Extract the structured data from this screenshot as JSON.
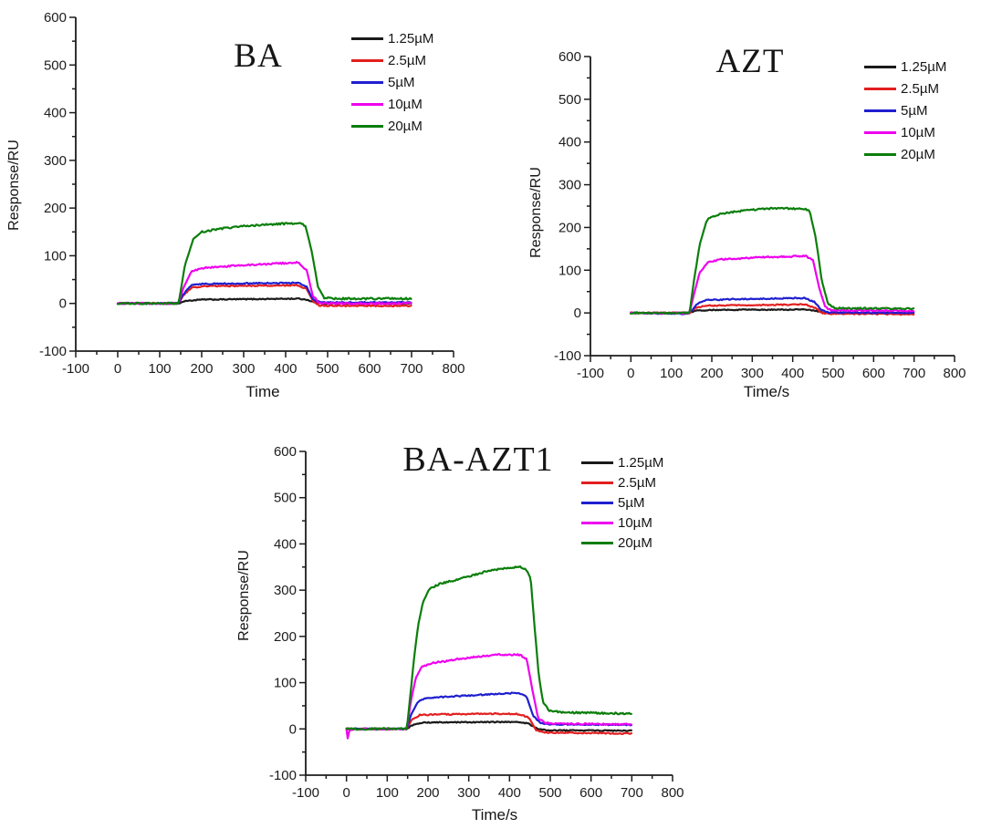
{
  "figure": {
    "background": "#ffffff",
    "text_color": "#151515",
    "axis_color": "#1c1c1c"
  },
  "chart_data": [
    {
      "id": "ba",
      "type": "line",
      "title": "BA",
      "xlabel": "Time",
      "ylabel": "Response/RU",
      "xlim": [
        -100,
        800
      ],
      "ylim": [
        -100,
        600
      ],
      "xticks": [
        -100,
        0,
        100,
        200,
        300,
        400,
        500,
        600,
        700,
        800
      ],
      "yticks": [
        -100,
        0,
        100,
        200,
        300,
        400,
        500,
        600
      ],
      "minor_tick_step": 50,
      "grid": "off",
      "legend_position": "top-right",
      "series": [
        {
          "label": "1.25µM",
          "color": "#1a1a1a",
          "points": [
            [
              0,
              0
            ],
            [
              145,
              0
            ],
            [
              160,
              5
            ],
            [
              200,
              8
            ],
            [
              430,
              10
            ],
            [
              450,
              8
            ],
            [
              470,
              2
            ],
            [
              490,
              0
            ],
            [
              700,
              0
            ]
          ]
        },
        {
          "label": "2.5µM",
          "color": "#e31f1f",
          "points": [
            [
              0,
              0
            ],
            [
              145,
              0
            ],
            [
              155,
              15
            ],
            [
              175,
              33
            ],
            [
              200,
              36
            ],
            [
              430,
              38
            ],
            [
              450,
              30
            ],
            [
              465,
              5
            ],
            [
              480,
              -4
            ],
            [
              500,
              -5
            ],
            [
              700,
              -5
            ]
          ]
        },
        {
          "label": "5µM",
          "color": "#1f1fd0",
          "points": [
            [
              0,
              0
            ],
            [
              145,
              0
            ],
            [
              155,
              18
            ],
            [
              175,
              38
            ],
            [
              200,
              41
            ],
            [
              430,
              43
            ],
            [
              450,
              35
            ],
            [
              465,
              8
            ],
            [
              480,
              3
            ],
            [
              500,
              2
            ],
            [
              700,
              2
            ]
          ]
        },
        {
          "label": "10µM",
          "color": "#ee00ee",
          "points": [
            [
              0,
              0
            ],
            [
              145,
              0
            ],
            [
              155,
              30
            ],
            [
              175,
              66
            ],
            [
              200,
              74
            ],
            [
              260,
              78
            ],
            [
              430,
              86
            ],
            [
              450,
              70
            ],
            [
              465,
              15
            ],
            [
              480,
              2
            ],
            [
              500,
              0
            ],
            [
              700,
              0
            ]
          ]
        },
        {
          "label": "20µM",
          "color": "#0b7e0b",
          "points": [
            [
              0,
              0
            ],
            [
              145,
              0
            ],
            [
              160,
              80
            ],
            [
              180,
              135
            ],
            [
              200,
              150
            ],
            [
              240,
              156
            ],
            [
              310,
              163
            ],
            [
              390,
              167
            ],
            [
              432,
              168
            ],
            [
              447,
              163
            ],
            [
              462,
              110
            ],
            [
              477,
              35
            ],
            [
              492,
              12
            ],
            [
              515,
              10
            ],
            [
              700,
              10
            ]
          ]
        }
      ]
    },
    {
      "id": "azt",
      "type": "line",
      "title": "AZT",
      "xlabel": "Time/s",
      "ylabel": "Response/RU",
      "xlim": [
        -100,
        800
      ],
      "ylim": [
        -100,
        600
      ],
      "xticks": [
        -100,
        0,
        100,
        200,
        300,
        400,
        500,
        600,
        700,
        800
      ],
      "yticks": [
        -100,
        0,
        100,
        200,
        300,
        400,
        500,
        600
      ],
      "minor_tick_step": 50,
      "grid": "off",
      "legend_position": "top-right",
      "series": [
        {
          "label": "1.25µM",
          "color": "#1a1a1a",
          "points": [
            [
              0,
              0
            ],
            [
              145,
              0
            ],
            [
              160,
              5
            ],
            [
              200,
              7
            ],
            [
              430,
              8
            ],
            [
              455,
              5
            ],
            [
              475,
              1
            ],
            [
              500,
              0
            ],
            [
              700,
              0
            ]
          ]
        },
        {
          "label": "2.5µM",
          "color": "#e31f1f",
          "points": [
            [
              0,
              0
            ],
            [
              145,
              0
            ],
            [
              160,
              12
            ],
            [
              185,
              17
            ],
            [
              430,
              20
            ],
            [
              455,
              12
            ],
            [
              472,
              0
            ],
            [
              490,
              -2
            ],
            [
              700,
              -3
            ]
          ]
        },
        {
          "label": "5µM",
          "color": "#1f1fd0",
          "points": [
            [
              0,
              0
            ],
            [
              138,
              -2
            ],
            [
              150,
              5
            ],
            [
              165,
              22
            ],
            [
              185,
              30
            ],
            [
              250,
              32
            ],
            [
              430,
              35
            ],
            [
              455,
              25
            ],
            [
              470,
              8
            ],
            [
              490,
              1
            ],
            [
              700,
              0
            ]
          ]
        },
        {
          "label": "10µM",
          "color": "#ee00ee",
          "points": [
            [
              0,
              0
            ],
            [
              145,
              0
            ],
            [
              155,
              40
            ],
            [
              170,
              95
            ],
            [
              190,
              118
            ],
            [
              220,
              125
            ],
            [
              310,
              130
            ],
            [
              432,
              133
            ],
            [
              450,
              124
            ],
            [
              465,
              60
            ],
            [
              480,
              15
            ],
            [
              495,
              6
            ],
            [
              700,
              5
            ]
          ]
        },
        {
          "label": "20µM",
          "color": "#0b7e0b",
          "points": [
            [
              0,
              0
            ],
            [
              145,
              0
            ],
            [
              155,
              70
            ],
            [
              170,
              160
            ],
            [
              188,
              218
            ],
            [
              220,
              232
            ],
            [
              285,
              240
            ],
            [
              355,
              245
            ],
            [
              430,
              243
            ],
            [
              442,
              238
            ],
            [
              457,
              175
            ],
            [
              472,
              75
            ],
            [
              487,
              22
            ],
            [
              505,
              11
            ],
            [
              700,
              10
            ]
          ]
        }
      ]
    },
    {
      "id": "ba-azt1",
      "type": "line",
      "title": "BA-AZT1",
      "xlabel": "Time/s",
      "ylabel": "Response/RU",
      "xlim": [
        -100,
        800
      ],
      "ylim": [
        -100,
        600
      ],
      "xticks": [
        -100,
        0,
        100,
        200,
        300,
        400,
        500,
        600,
        700,
        800
      ],
      "yticks": [
        -100,
        0,
        100,
        200,
        300,
        400,
        500,
        600
      ],
      "minor_tick_step": 50,
      "grid": "off",
      "legend_position": "top-right",
      "series": [
        {
          "label": "1.25µM",
          "color": "#1a1a1a",
          "points": [
            [
              0,
              0
            ],
            [
              148,
              0
            ],
            [
              165,
              10
            ],
            [
              190,
              14
            ],
            [
              420,
              15
            ],
            [
              445,
              12
            ],
            [
              470,
              0
            ],
            [
              490,
              -3
            ],
            [
              700,
              -4
            ]
          ]
        },
        {
          "label": "2.5µM",
          "color": "#e31f1f",
          "points": [
            [
              0,
              0
            ],
            [
              148,
              0
            ],
            [
              160,
              20
            ],
            [
              180,
              30
            ],
            [
              210,
              31
            ],
            [
              350,
              33
            ],
            [
              425,
              32
            ],
            [
              448,
              24
            ],
            [
              465,
              -2
            ],
            [
              485,
              -8
            ],
            [
              700,
              -10
            ]
          ]
        },
        {
          "label": "5µM",
          "color": "#1f1fd0",
          "points": [
            [
              0,
              0
            ],
            [
              148,
              0
            ],
            [
              158,
              30
            ],
            [
              175,
              58
            ],
            [
              195,
              67
            ],
            [
              255,
              70
            ],
            [
              355,
              75
            ],
            [
              422,
              78
            ],
            [
              442,
              70
            ],
            [
              458,
              28
            ],
            [
              478,
              12
            ],
            [
              500,
              10
            ],
            [
              700,
              9
            ]
          ]
        },
        {
          "label": "10µM",
          "color": "#ee00ee",
          "points": [
            [
              0,
              -1
            ],
            [
              3,
              -20
            ],
            [
              8,
              -1
            ],
            [
              148,
              0
            ],
            [
              158,
              60
            ],
            [
              170,
              110
            ],
            [
              185,
              135
            ],
            [
              215,
              143
            ],
            [
              300,
              154
            ],
            [
              375,
              161
            ],
            [
              425,
              160
            ],
            [
              442,
              152
            ],
            [
              456,
              85
            ],
            [
              470,
              24
            ],
            [
              486,
              13
            ],
            [
              510,
              11
            ],
            [
              700,
              10
            ]
          ]
        },
        {
          "label": "20µM",
          "color": "#0b7e0b",
          "points": [
            [
              0,
              0
            ],
            [
              148,
              0
            ],
            [
              157,
              75
            ],
            [
              166,
              155
            ],
            [
              176,
              225
            ],
            [
              188,
              275
            ],
            [
              203,
              302
            ],
            [
              230,
              314
            ],
            [
              285,
              326
            ],
            [
              345,
              341
            ],
            [
              395,
              348
            ],
            [
              428,
              350
            ],
            [
              442,
              344
            ],
            [
              452,
              325
            ],
            [
              462,
              215
            ],
            [
              472,
              115
            ],
            [
              482,
              58
            ],
            [
              497,
              40
            ],
            [
              525,
              36
            ],
            [
              700,
              33
            ]
          ]
        }
      ]
    }
  ]
}
